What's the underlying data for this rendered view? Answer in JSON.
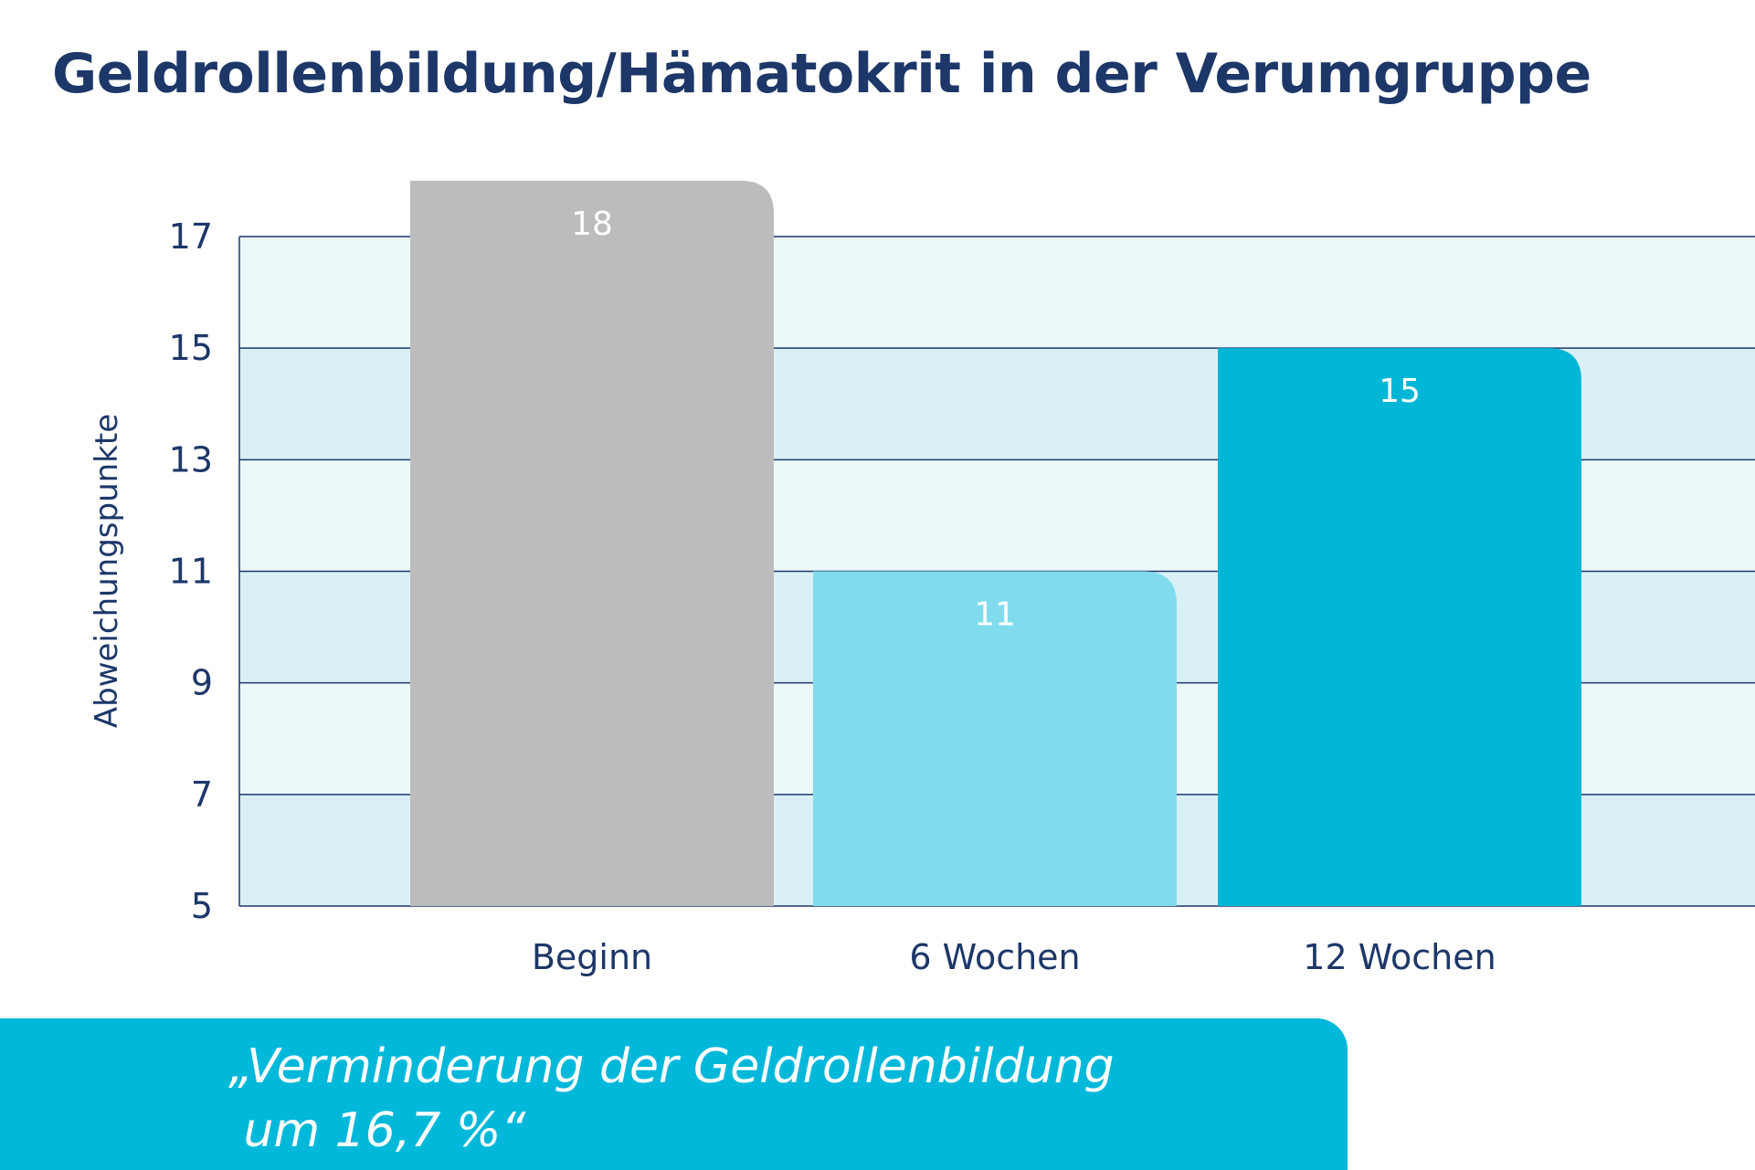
{
  "title": "Geldrollenbildung/Hämatokrit in der Verumgruppe",
  "quote": {
    "line1": "„Verminderung der Geldrollenbildung",
    "line2": " um 16,7 %“"
  },
  "colors": {
    "title": "#1d3768",
    "axis_text": "#1d3768",
    "band_light": "#edf8fa",
    "band_dark": "#d9f1f6",
    "gridline": "#1d3768",
    "bar_beginn": "#bcbcbc",
    "bar_6_wochen": "#80dcec",
    "bar_12_wochen": "#00b6d6",
    "banner": "#00b8d9"
  },
  "chart_data": {
    "type": "bar",
    "categories": [
      "Beginn",
      "6 Wochen",
      "12 Wochen"
    ],
    "values": [
      18,
      11,
      15
    ],
    "data_labels": [
      "18",
      "11",
      "15"
    ],
    "ylabel": "Abweichungspunkte",
    "xlabel": "",
    "ylim": [
      5,
      17
    ],
    "yticks": [
      5,
      7,
      9,
      11,
      13,
      15,
      17
    ],
    "grid": true,
    "legend": "none"
  }
}
